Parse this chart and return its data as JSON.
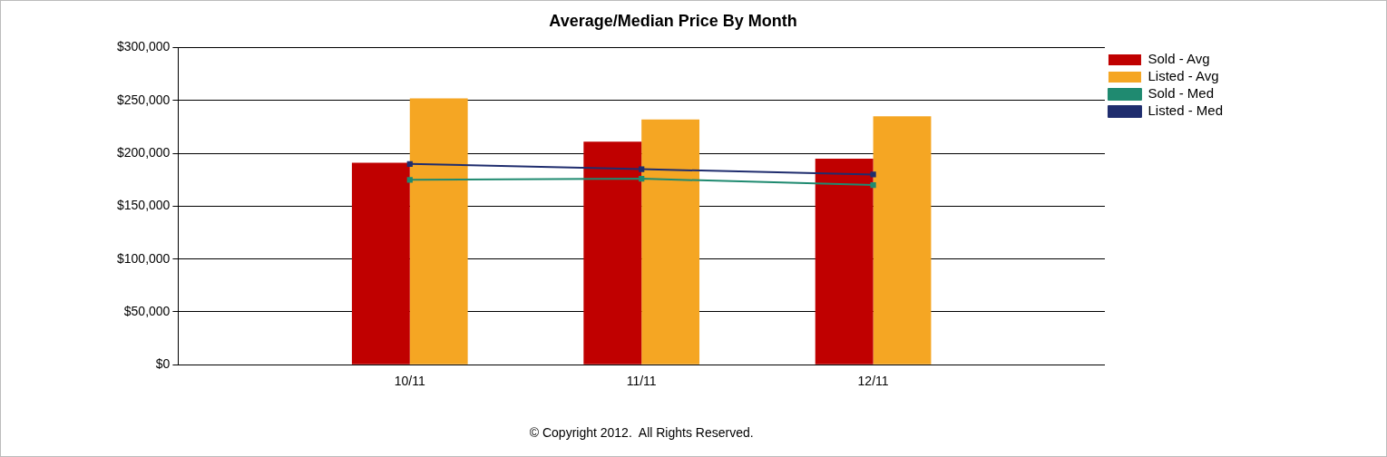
{
  "chart_data": {
    "type": "bar",
    "title": "Average/Median Price By Month",
    "categories": [
      "10/11",
      "11/11",
      "12/11"
    ],
    "series": [
      {
        "name": "Sold - Avg",
        "color": "#c00000",
        "values": [
          191000,
          211000,
          195000
        ]
      },
      {
        "name": "Listed - Avg",
        "color": "#f5a623",
        "values": [
          252000,
          232000,
          235000
        ]
      },
      {
        "name": "Sold - Med",
        "type": "line",
        "color": "#1f8a70",
        "values": [
          175000,
          176000,
          170000
        ]
      },
      {
        "name": "Listed - Med",
        "type": "line",
        "color": "#1f2d6e",
        "values": [
          190000,
          185000,
          180000
        ]
      }
    ],
    "ylim": [
      0,
      300000
    ],
    "yticks": [
      {
        "value": 0,
        "label": "$0"
      },
      {
        "value": 50000,
        "label": "$50,000"
      },
      {
        "value": 100000,
        "label": "$100,000"
      },
      {
        "value": 150000,
        "label": "$150,000"
      },
      {
        "value": 200000,
        "label": "$200,000"
      },
      {
        "value": 250000,
        "label": "$250,000"
      },
      {
        "value": 300000,
        "label": "$300,000"
      }
    ],
    "grid": "y",
    "legend": "top right",
    "marker": "square",
    "line_style": "solid",
    "annotations": [
      "© Copyright 2012.  All Rights Reserved."
    ]
  }
}
